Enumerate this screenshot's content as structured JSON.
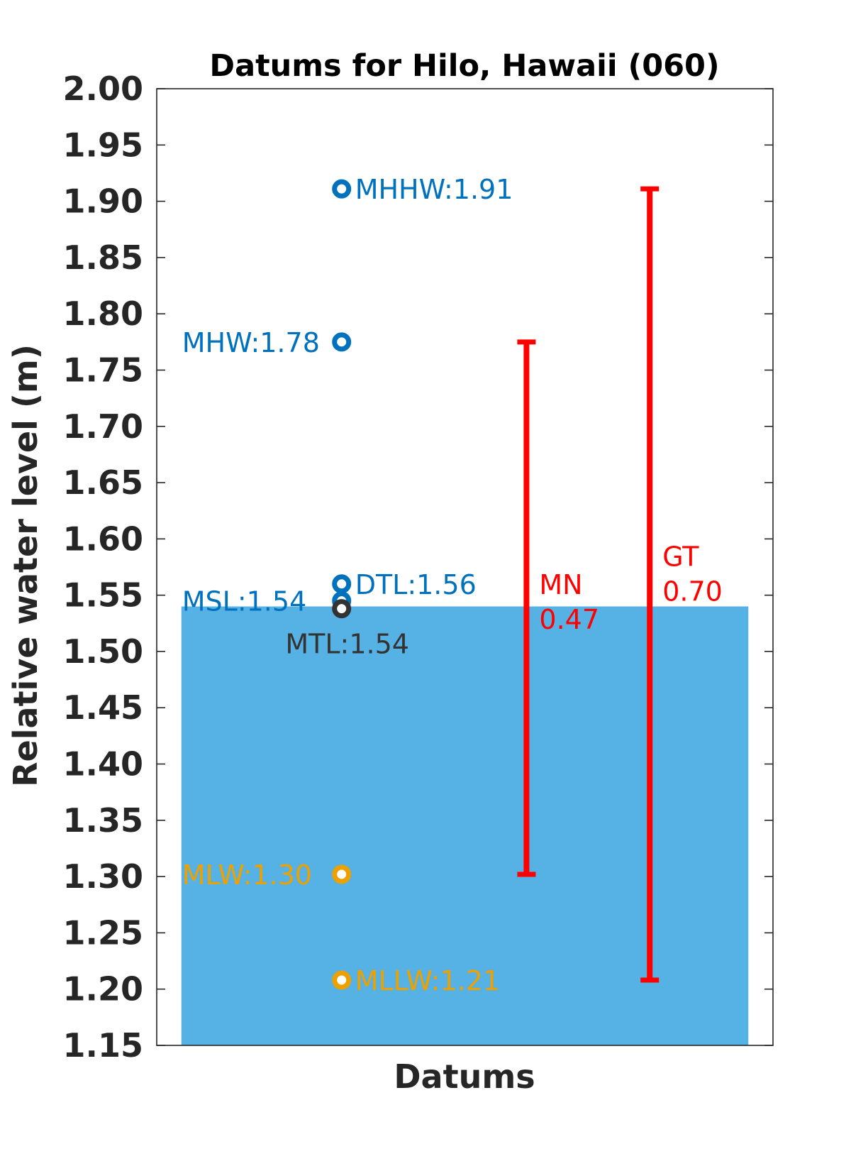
{
  "chart_data": {
    "type": "bar",
    "title": "Datums for Hilo, Hawaii (060)",
    "xlabel": "Datums",
    "ylabel": "Relative water level (m)",
    "ylim": [
      1.15,
      2.0
    ],
    "y_ticks": [
      "1.15",
      "1.20",
      "1.25",
      "1.30",
      "1.35",
      "1.40",
      "1.45",
      "1.50",
      "1.55",
      "1.60",
      "1.65",
      "1.70",
      "1.75",
      "1.80",
      "1.85",
      "1.90",
      "1.95",
      "2.00"
    ],
    "grid": false,
    "bar": {
      "value": 1.54,
      "color": "#56B1E5"
    },
    "datums": [
      {
        "name": "MHHW",
        "label": "MHHW:1.91",
        "value": 1.911,
        "color": "#0072BD",
        "label_side": "right"
      },
      {
        "name": "MHW",
        "label": "MHW:1.78",
        "value": 1.775,
        "color": "#0072BD",
        "label_side": "left"
      },
      {
        "name": "DTL",
        "label": "DTL:1.56",
        "value": 1.56,
        "color": "#0072BD",
        "label_side": "right"
      },
      {
        "name": "MSL",
        "label": "MSL:1.54",
        "value": 1.545,
        "color": "#0072BD",
        "label_side": "left"
      },
      {
        "name": "MTL",
        "label": "MTL:1.54",
        "value": 1.538,
        "color": "#333333",
        "label_side": "below"
      },
      {
        "name": "MLW",
        "label": "MLW:1.30",
        "value": 1.302,
        "color": "#EDA100",
        "label_side": "left"
      },
      {
        "name": "MLLW",
        "label": "MLLW:1.21",
        "value": 1.208,
        "color": "#EDA100",
        "label_side": "right"
      }
    ],
    "ranges": [
      {
        "name": "MN",
        "value": "0.47",
        "low": 1.302,
        "high": 1.775,
        "color": "#FF0000"
      },
      {
        "name": "GT",
        "value": "0.70",
        "low": 1.208,
        "high": 1.911,
        "color": "#FF0000"
      }
    ]
  }
}
